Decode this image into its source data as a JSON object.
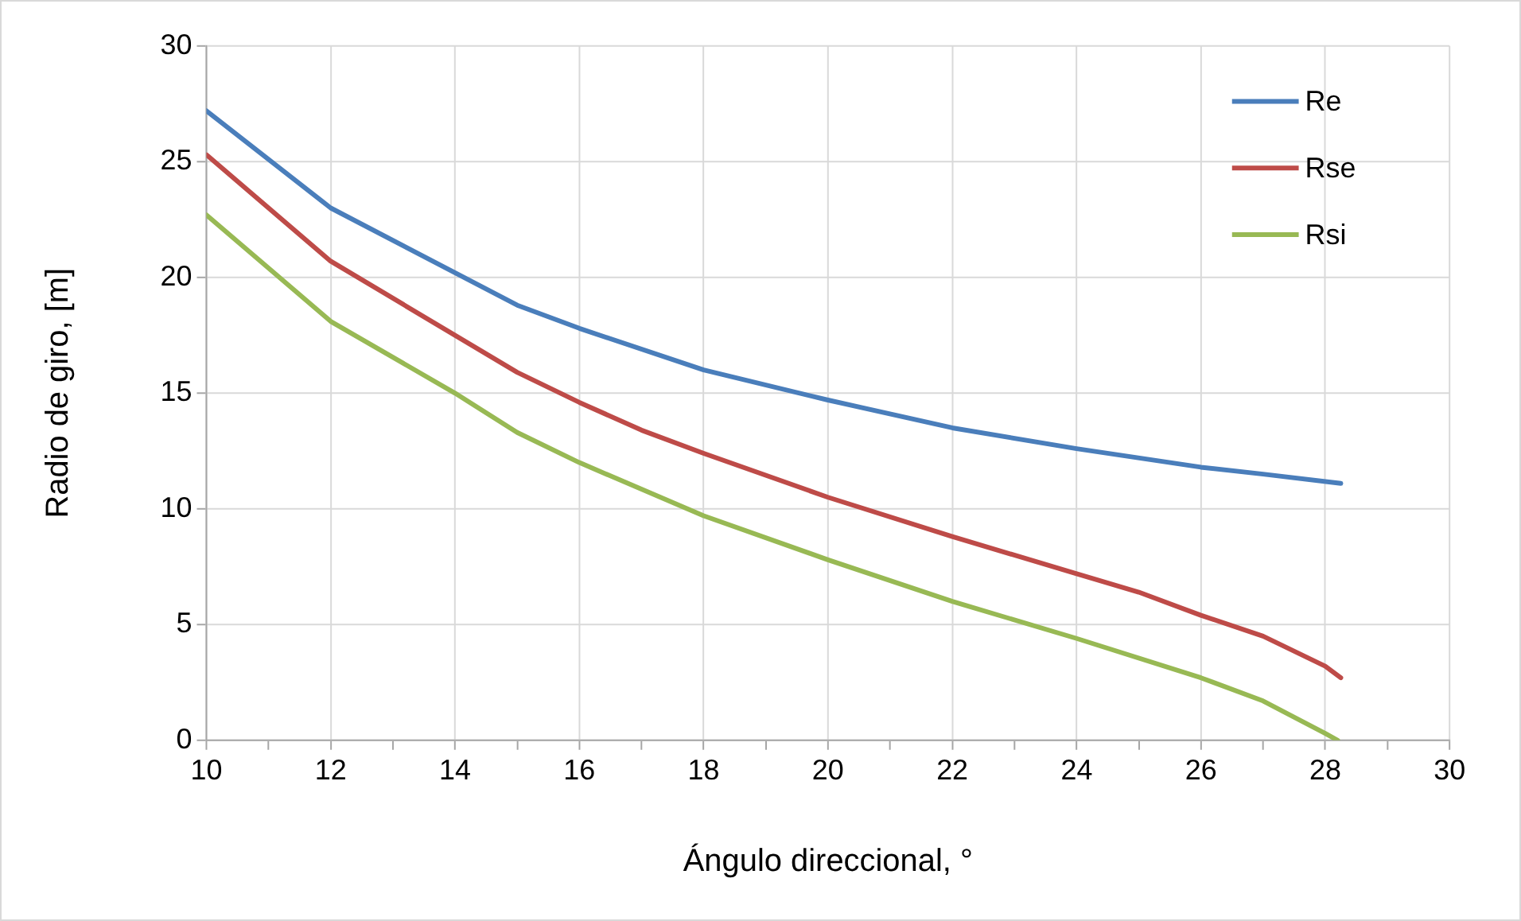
{
  "chart_data": {
    "type": "line",
    "xlabel": "Ángulo direccional, °",
    "ylabel": "Radio de giro, [m]",
    "xlim": [
      10,
      30
    ],
    "ylim": [
      0,
      30
    ],
    "xticks": [
      10,
      {
        "value": 11,
        "label": null
      },
      12,
      {
        "value": 13,
        "label": null
      },
      14,
      {
        "value": 15,
        "label": null
      },
      16,
      {
        "value": 17,
        "label": null
      },
      18,
      {
        "value": 19,
        "label": null
      },
      20,
      {
        "value": 21,
        "label": null
      },
      22,
      {
        "value": 23,
        "label": null
      },
      24,
      {
        "value": 25,
        "label": null
      },
      26,
      {
        "value": 27,
        "label": null
      },
      28,
      {
        "value": 29,
        "label": null
      },
      30
    ],
    "yticks": [
      0,
      5,
      10,
      15,
      20,
      25,
      30
    ],
    "grid": true,
    "legend": "top right",
    "marker": "none",
    "line_style": "solid",
    "series": [
      {
        "name": "Re",
        "color": "#4a7ebb",
        "x": [
          10,
          12,
          15,
          16,
          18,
          20,
          22,
          24,
          26,
          27,
          28.25
        ],
        "values": [
          27.2,
          23.0,
          18.8,
          17.8,
          16.0,
          14.7,
          13.5,
          12.6,
          11.8,
          11.5,
          11.1
        ]
      },
      {
        "name": "Rse",
        "color": "#be4b48",
        "x": [
          10,
          12,
          15,
          16,
          17,
          18,
          20,
          22,
          24,
          25,
          26,
          27,
          28,
          28.25
        ],
        "values": [
          25.3,
          20.7,
          15.9,
          14.6,
          13.4,
          12.4,
          10.5,
          8.8,
          7.2,
          6.4,
          5.4,
          4.5,
          3.2,
          2.7
        ]
      },
      {
        "name": "Rsi",
        "color": "#98b954",
        "x": [
          10,
          12,
          14,
          15,
          16,
          18,
          20,
          22,
          24,
          26,
          27,
          28,
          28.2
        ],
        "values": [
          22.7,
          18.1,
          15.0,
          13.3,
          12.0,
          9.7,
          7.8,
          6.0,
          4.4,
          2.7,
          1.7,
          0.3,
          0
        ]
      }
    ]
  }
}
